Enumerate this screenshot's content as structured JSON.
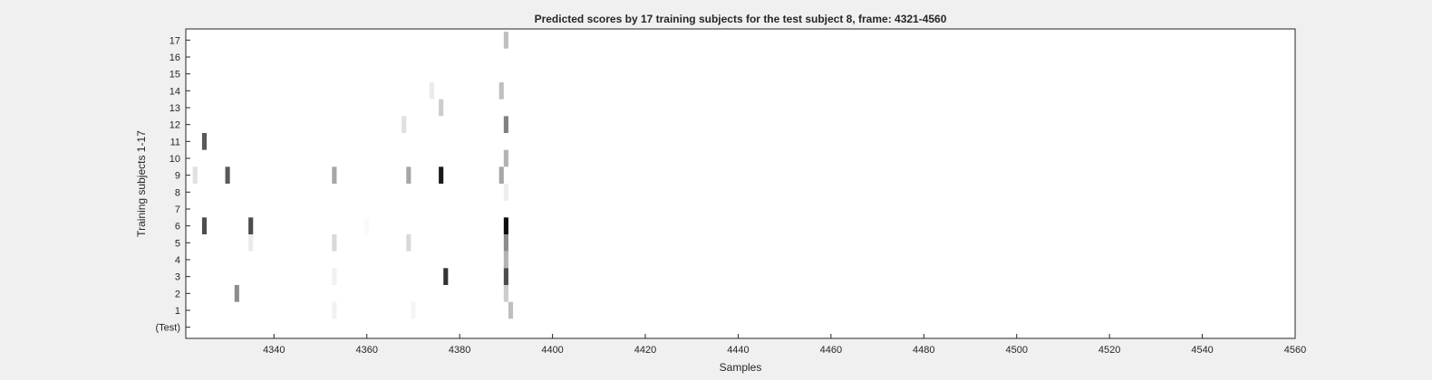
{
  "chart_data": {
    "type": "heatmap",
    "title": "Predicted scores by 17 training subjects for the test subject 8, frame: 4321-4560",
    "xlabel": "Samples",
    "ylabel": "Training subjects 1-17",
    "xlim": [
      4321,
      4560
    ],
    "x_ticks": [
      "4340",
      "4360",
      "4380",
      "4400",
      "4420",
      "4440",
      "4460",
      "4480",
      "4500",
      "4520",
      "4540",
      "4560"
    ],
    "y_ticks": [
      "(Test)",
      "1",
      "2",
      "3",
      "4",
      "5",
      "6",
      "7",
      "8",
      "9",
      "10",
      "11",
      "12",
      "13",
      "14",
      "15",
      "16",
      "17"
    ],
    "colormap": "gray (white = low score, black = high score)",
    "grid": false,
    "cells": [
      {
        "row": "17",
        "sample": 4390,
        "value": 0.25
      },
      {
        "row": "14",
        "sample": 4374,
        "value": 0.08
      },
      {
        "row": "14",
        "sample": 4389,
        "value": 0.25
      },
      {
        "row": "13",
        "sample": 4376,
        "value": 0.2
      },
      {
        "row": "12",
        "sample": 4368,
        "value": 0.12
      },
      {
        "row": "12",
        "sample": 4390,
        "value": 0.5
      },
      {
        "row": "11",
        "sample": 4325,
        "value": 0.65
      },
      {
        "row": "10",
        "sample": 4390,
        "value": 0.3
      },
      {
        "row": "9",
        "sample": 4323,
        "value": 0.12
      },
      {
        "row": "9",
        "sample": 4330,
        "value": 0.65
      },
      {
        "row": "9",
        "sample": 4353,
        "value": 0.35
      },
      {
        "row": "9",
        "sample": 4369,
        "value": 0.35
      },
      {
        "row": "9",
        "sample": 4376,
        "value": 0.9
      },
      {
        "row": "9",
        "sample": 4389,
        "value": 0.35
      },
      {
        "row": "8",
        "sample": 4390,
        "value": 0.07
      },
      {
        "row": "6",
        "sample": 4325,
        "value": 0.7
      },
      {
        "row": "6",
        "sample": 4335,
        "value": 0.7
      },
      {
        "row": "6",
        "sample": 4360,
        "value": 0.02
      },
      {
        "row": "6",
        "sample": 4390,
        "value": 0.95
      },
      {
        "row": "5",
        "sample": 4335,
        "value": 0.08
      },
      {
        "row": "5",
        "sample": 4353,
        "value": 0.15
      },
      {
        "row": "5",
        "sample": 4369,
        "value": 0.15
      },
      {
        "row": "5",
        "sample": 4390,
        "value": 0.45
      },
      {
        "row": "4",
        "sample": 4390,
        "value": 0.3
      },
      {
        "row": "3",
        "sample": 4353,
        "value": 0.05
      },
      {
        "row": "3",
        "sample": 4377,
        "value": 0.8
      },
      {
        "row": "3",
        "sample": 4390,
        "value": 0.7
      },
      {
        "row": "2",
        "sample": 4332,
        "value": 0.45
      },
      {
        "row": "2",
        "sample": 4390,
        "value": 0.2
      },
      {
        "row": "1",
        "sample": 4353,
        "value": 0.05
      },
      {
        "row": "1",
        "sample": 4370,
        "value": 0.04
      },
      {
        "row": "1",
        "sample": 4391,
        "value": 0.25
      }
    ]
  }
}
